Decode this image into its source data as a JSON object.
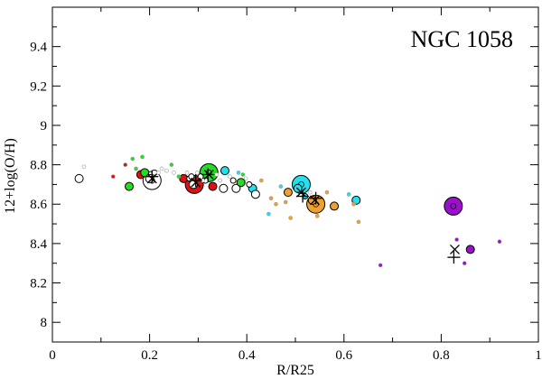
{
  "chart_data": {
    "type": "scatter",
    "title": "NGC 1058",
    "xlabel": "R/R25",
    "ylabel": "12+log(O/H)",
    "xlim": [
      0,
      1
    ],
    "ylim": [
      7.9,
      9.6
    ],
    "x_ticks": [
      "0",
      "0.2",
      "0.4",
      "0.6",
      "0.8",
      "1"
    ],
    "y_ticks": [
      "8",
      "8.2",
      "8.4",
      "8.6",
      "8.8",
      "9",
      "9.2",
      "9.4"
    ],
    "grid": false,
    "colors": {
      "white": "#ffffff",
      "red": "#dd1111",
      "green": "#22dd22",
      "cyan": "#22e0ee",
      "orange": "#f0a030",
      "purple": "#9a10cc",
      "gray": "#999999"
    },
    "points": [
      {
        "x": 0.055,
        "y": 8.73,
        "color": "white",
        "size": "medium"
      },
      {
        "x": 0.065,
        "y": 8.79,
        "color": "white",
        "size": "tiny"
      },
      {
        "x": 0.125,
        "y": 8.74,
        "color": "red",
        "size": "tiny"
      },
      {
        "x": 0.15,
        "y": 8.8,
        "color": "red",
        "size": "tiny"
      },
      {
        "x": 0.158,
        "y": 8.69,
        "color": "green",
        "size": "medium"
      },
      {
        "x": 0.165,
        "y": 8.83,
        "color": "green",
        "size": "tiny"
      },
      {
        "x": 0.172,
        "y": 8.78,
        "color": "green",
        "size": "tiny"
      },
      {
        "x": 0.182,
        "y": 8.75,
        "color": "red",
        "size": "medium"
      },
      {
        "x": 0.185,
        "y": 8.84,
        "color": "green",
        "size": "tiny"
      },
      {
        "x": 0.19,
        "y": 8.76,
        "color": "green",
        "size": "medium"
      },
      {
        "x": 0.2,
        "y": 8.73,
        "color": "white",
        "size": "medium"
      },
      {
        "x": 0.205,
        "y": 8.72,
        "color": "white",
        "size": "large"
      },
      {
        "x": 0.21,
        "y": 8.76,
        "color": "white",
        "size": "small"
      },
      {
        "x": 0.218,
        "y": 8.76,
        "color": "white",
        "size": "tiny"
      },
      {
        "x": 0.225,
        "y": 8.78,
        "color": "white",
        "size": "tiny"
      },
      {
        "x": 0.235,
        "y": 8.77,
        "color": "white",
        "size": "tiny"
      },
      {
        "x": 0.245,
        "y": 8.8,
        "color": "green",
        "size": "tiny"
      },
      {
        "x": 0.25,
        "y": 8.76,
        "color": "white",
        "size": "tiny"
      },
      {
        "x": 0.26,
        "y": 8.74,
        "color": "green",
        "size": "tiny"
      },
      {
        "x": 0.27,
        "y": 8.73,
        "color": "red",
        "size": "medium"
      },
      {
        "x": 0.277,
        "y": 8.76,
        "color": "white",
        "size": "tiny"
      },
      {
        "x": 0.282,
        "y": 8.73,
        "color": "white",
        "size": "small"
      },
      {
        "x": 0.286,
        "y": 8.74,
        "color": "white",
        "size": "small"
      },
      {
        "x": 0.29,
        "y": 8.7,
        "color": "white",
        "size": "medium"
      },
      {
        "x": 0.292,
        "y": 8.7,
        "color": "red",
        "size": "large"
      },
      {
        "x": 0.298,
        "y": 8.76,
        "color": "white",
        "size": "tiny"
      },
      {
        "x": 0.305,
        "y": 8.74,
        "color": "white",
        "size": "small"
      },
      {
        "x": 0.31,
        "y": 8.72,
        "color": "white",
        "size": "tiny"
      },
      {
        "x": 0.315,
        "y": 8.72,
        "color": "white",
        "size": "small"
      },
      {
        "x": 0.322,
        "y": 8.76,
        "color": "green",
        "size": "large"
      },
      {
        "x": 0.33,
        "y": 8.69,
        "color": "red",
        "size": "medium"
      },
      {
        "x": 0.338,
        "y": 8.75,
        "color": "white",
        "size": "tiny"
      },
      {
        "x": 0.345,
        "y": 8.72,
        "color": "white",
        "size": "tiny"
      },
      {
        "x": 0.352,
        "y": 8.68,
        "color": "white",
        "size": "medium"
      },
      {
        "x": 0.355,
        "y": 8.77,
        "color": "cyan",
        "size": "medium"
      },
      {
        "x": 0.365,
        "y": 8.74,
        "color": "white",
        "size": "tiny"
      },
      {
        "x": 0.372,
        "y": 8.72,
        "color": "white",
        "size": "small"
      },
      {
        "x": 0.378,
        "y": 8.68,
        "color": "white",
        "size": "medium"
      },
      {
        "x": 0.383,
        "y": 8.76,
        "color": "cyan",
        "size": "tiny"
      },
      {
        "x": 0.388,
        "y": 8.71,
        "color": "green",
        "size": "medium"
      },
      {
        "x": 0.392,
        "y": 8.75,
        "color": "green",
        "size": "tiny"
      },
      {
        "x": 0.398,
        "y": 8.73,
        "color": "white",
        "size": "tiny"
      },
      {
        "x": 0.405,
        "y": 8.7,
        "color": "white",
        "size": "small"
      },
      {
        "x": 0.412,
        "y": 8.68,
        "color": "cyan",
        "size": "medium"
      },
      {
        "x": 0.418,
        "y": 8.65,
        "color": "white",
        "size": "medium"
      },
      {
        "x": 0.43,
        "y": 8.72,
        "color": "orange",
        "size": "tiny"
      },
      {
        "x": 0.445,
        "y": 8.55,
        "color": "cyan",
        "size": "tiny"
      },
      {
        "x": 0.45,
        "y": 8.63,
        "color": "orange",
        "size": "tiny"
      },
      {
        "x": 0.46,
        "y": 8.6,
        "color": "orange",
        "size": "tiny"
      },
      {
        "x": 0.47,
        "y": 8.69,
        "color": "cyan",
        "size": "tiny"
      },
      {
        "x": 0.48,
        "y": 8.61,
        "color": "orange",
        "size": "tiny"
      },
      {
        "x": 0.485,
        "y": 8.66,
        "color": "orange",
        "size": "medium"
      },
      {
        "x": 0.49,
        "y": 8.53,
        "color": "orange",
        "size": "tiny"
      },
      {
        "x": 0.505,
        "y": 8.68,
        "color": "cyan",
        "size": "medium"
      },
      {
        "x": 0.512,
        "y": 8.7,
        "color": "cyan",
        "size": "large"
      },
      {
        "x": 0.52,
        "y": 8.64,
        "color": "cyan",
        "size": "small"
      },
      {
        "x": 0.53,
        "y": 8.66,
        "color": "white",
        "size": "tiny"
      },
      {
        "x": 0.535,
        "y": 8.62,
        "color": "orange",
        "size": "medium"
      },
      {
        "x": 0.542,
        "y": 8.6,
        "color": "orange",
        "size": "large"
      },
      {
        "x": 0.545,
        "y": 8.54,
        "color": "orange",
        "size": "tiny"
      },
      {
        "x": 0.565,
        "y": 8.66,
        "color": "orange",
        "size": "tiny"
      },
      {
        "x": 0.58,
        "y": 8.59,
        "color": "orange",
        "size": "medium"
      },
      {
        "x": 0.61,
        "y": 8.65,
        "color": "cyan",
        "size": "tiny"
      },
      {
        "x": 0.62,
        "y": 8.6,
        "color": "orange",
        "size": "tiny"
      },
      {
        "x": 0.625,
        "y": 8.62,
        "color": "cyan",
        "size": "medium"
      },
      {
        "x": 0.63,
        "y": 8.51,
        "color": "orange",
        "size": "tiny"
      },
      {
        "x": 0.675,
        "y": 8.29,
        "color": "purple",
        "size": "tiny"
      },
      {
        "x": 0.825,
        "y": 8.59,
        "color": "purple",
        "size": "large"
      },
      {
        "x": 0.832,
        "y": 8.42,
        "color": "purple",
        "size": "tiny"
      },
      {
        "x": 0.848,
        "y": 8.3,
        "color": "purple",
        "size": "tiny"
      },
      {
        "x": 0.86,
        "y": 8.37,
        "color": "purple",
        "size": "medium"
      },
      {
        "x": 0.92,
        "y": 8.41,
        "color": "purple",
        "size": "tiny"
      }
    ],
    "x_markers": [
      {
        "x": 0.205,
        "y": 8.73
      },
      {
        "x": 0.295,
        "y": 8.71
      },
      {
        "x": 0.322,
        "y": 8.75
      },
      {
        "x": 0.512,
        "y": 8.66
      },
      {
        "x": 0.54,
        "y": 8.62
      },
      {
        "x": 0.828,
        "y": 8.37
      }
    ],
    "plus_markers": [
      {
        "x": 0.205,
        "y": 8.74
      },
      {
        "x": 0.295,
        "y": 8.72
      },
      {
        "x": 0.32,
        "y": 8.75
      },
      {
        "x": 0.515,
        "y": 8.64
      },
      {
        "x": 0.542,
        "y": 8.63
      },
      {
        "x": 0.826,
        "y": 8.33
      }
    ]
  }
}
